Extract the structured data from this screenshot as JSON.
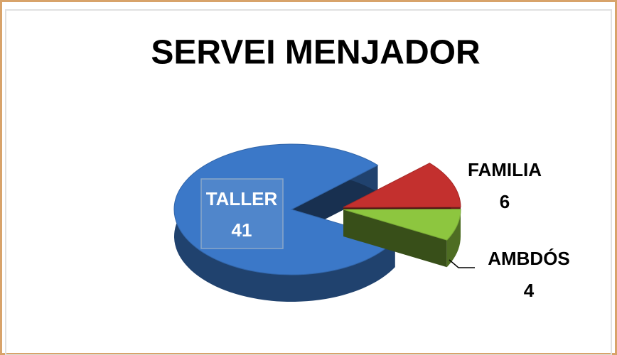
{
  "chart_data": {
    "type": "pie",
    "title": "SERVEI MENJADOR",
    "categories": [
      "TALLER",
      "FAMILIA",
      "AMBDÓS"
    ],
    "values": [
      41,
      6,
      4
    ],
    "colors": [
      "#3b78c8",
      "#c3302e",
      "#8dc63f"
    ]
  }
}
